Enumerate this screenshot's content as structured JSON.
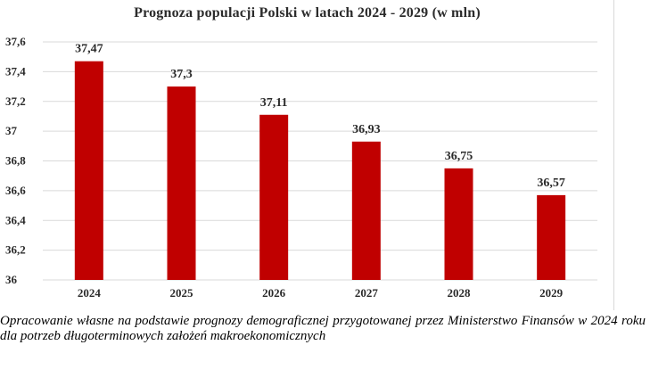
{
  "chart_data": {
    "type": "bar",
    "title": "Prognoza  populacji  Polski w latach 2024 - 2029 (w  mln)",
    "categories": [
      "2024",
      "2025",
      "2026",
      "2027",
      "2028",
      "2029"
    ],
    "values": [
      37.47,
      37.3,
      37.11,
      36.93,
      36.75,
      36.57
    ],
    "data_labels": [
      "37,47",
      "37,3",
      "37,11",
      "36,93",
      "36,75",
      "36,57"
    ],
    "ylim": [
      36,
      37.6
    ],
    "yticks": [
      36,
      36.2,
      36.4,
      36.6,
      36.8,
      37,
      37.2,
      37.4,
      37.6
    ],
    "ytick_labels": [
      "36",
      "36,2",
      "36,4",
      "36,6",
      "36,8",
      "37",
      "37,2",
      "37,4",
      "37,6"
    ],
    "xlabel": "",
    "ylabel": "",
    "grid": true,
    "bar_color": "#c00000",
    "grid_color": "#d9d9d9"
  },
  "caption": "Opracowanie własne na podstawie prognozy demograficznej przygotowanej przez Ministerstwo Finansów w 2024 roku dla potrzeb długoterminowych założeń makroekonomicznych"
}
